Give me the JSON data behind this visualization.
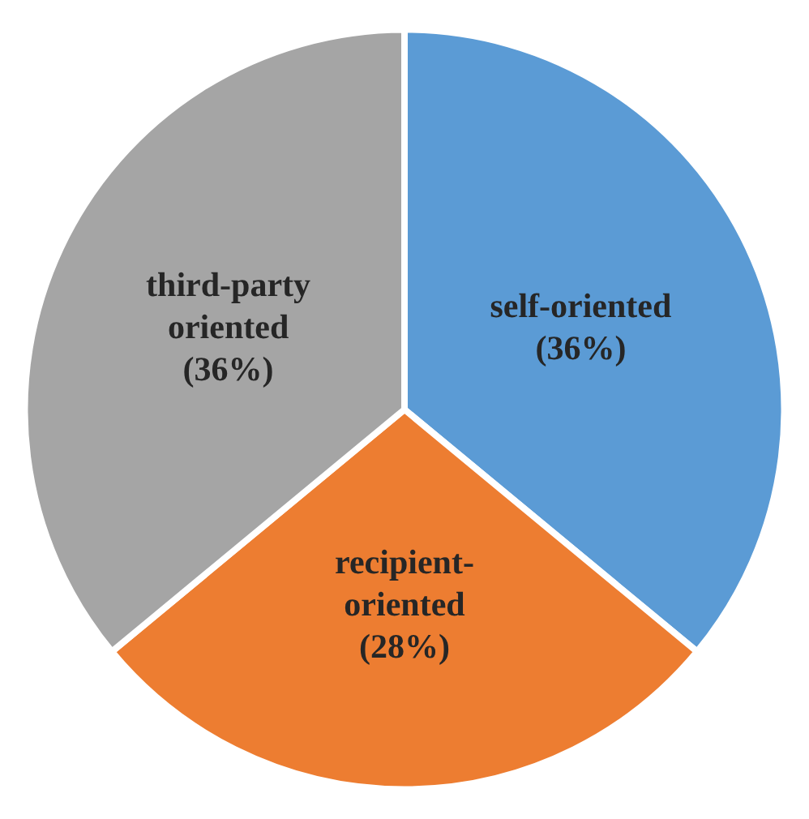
{
  "chart_data": {
    "type": "pie",
    "categories": [
      "self-oriented",
      "recipient-oriented",
      "third-party oriented"
    ],
    "values": [
      36,
      28,
      36
    ],
    "colors": [
      "#5b9bd5",
      "#ed7d31",
      "#a5a5a5"
    ],
    "value_labels": [
      "(36%)",
      "(28%)",
      "(36%)"
    ]
  }
}
